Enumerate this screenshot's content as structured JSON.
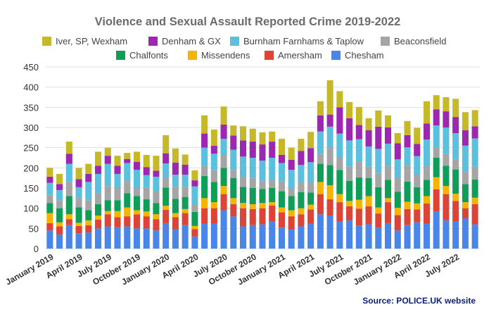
{
  "chart_data": {
    "type": "bar",
    "stacked": true,
    "title": "Violence and Sexual Assault Reported Crime 2019-2022",
    "source": "Source: POLICE.UK website",
    "xlabel": "",
    "ylabel": "",
    "ylim": [
      0,
      450
    ],
    "yticks": [
      0,
      50,
      100,
      150,
      200,
      250,
      300,
      350,
      400,
      450
    ],
    "grid": true,
    "legend_position": "top",
    "categories": [
      "Jan 2019",
      "Feb 2019",
      "Mar 2019",
      "Apr 2019",
      "May 2019",
      "Jun 2019",
      "Jul 2019",
      "Aug 2019",
      "Sep 2019",
      "Oct 2019",
      "Nov 2019",
      "Dec 2019",
      "Jan 2020",
      "Feb 2020",
      "Mar 2020",
      "Apr 2020",
      "May 2020",
      "Jun 2020",
      "Jul 2020",
      "Aug 2020",
      "Sep 2020",
      "Oct 2020",
      "Nov 2020",
      "Dec 2020",
      "Jan 2021",
      "Feb 2021",
      "Mar 2021",
      "Apr 2021",
      "May 2021",
      "Jun 2021",
      "Jul 2021",
      "Aug 2021",
      "Sep 2021",
      "Oct 2021",
      "Nov 2021",
      "Dec 2021",
      "Jan 2022",
      "Feb 2022",
      "Mar 2022",
      "Apr 2022",
      "May 2022",
      "Jun 2022",
      "Jul 2022",
      "Aug 2022",
      "Sep 2022"
    ],
    "xtick_labels": [
      {
        "index": 0,
        "label": "January 2019"
      },
      {
        "index": 3,
        "label": "April 2019"
      },
      {
        "index": 6,
        "label": "July 2019"
      },
      {
        "index": 9,
        "label": "October 2019"
      },
      {
        "index": 12,
        "label": "January 2020"
      },
      {
        "index": 15,
        "label": "April 2020"
      },
      {
        "index": 18,
        "label": "July 2020"
      },
      {
        "index": 21,
        "label": "October 2020"
      },
      {
        "index": 24,
        "label": "January 2021"
      },
      {
        "index": 27,
        "label": "April 2021"
      },
      {
        "index": 30,
        "label": "July 2021"
      },
      {
        "index": 33,
        "label": "October 2021"
      },
      {
        "index": 36,
        "label": "January 2022"
      },
      {
        "index": 39,
        "label": "April 2022"
      },
      {
        "index": 42,
        "label": "July 2022"
      }
    ],
    "series": [
      {
        "name": "Chesham",
        "color": "#4a86e8",
        "values": [
          45,
          35,
          58,
          38,
          40,
          50,
          55,
          53,
          55,
          50,
          50,
          45,
          63,
          48,
          58,
          30,
          62,
          62,
          95,
          80,
          55,
          58,
          60,
          67,
          52,
          48,
          55,
          62,
          85,
          82,
          68,
          70,
          57,
          60,
          52,
          63,
          45,
          58,
          65,
          62,
          92,
          70,
          68,
          75,
          60
        ]
      },
      {
        "name": "Amersham",
        "color": "#dc4437",
        "values": [
          18,
          20,
          15,
          18,
          18,
          22,
          30,
          25,
          25,
          35,
          30,
          28,
          33,
          30,
          30,
          18,
          38,
          38,
          40,
          30,
          45,
          40,
          40,
          40,
          38,
          32,
          30,
          35,
          50,
          40,
          47,
          35,
          42,
          45,
          35,
          52,
          38,
          40,
          32,
          50,
          55,
          65,
          50,
          25,
          50
        ]
      },
      {
        "name": "Missendens",
        "color": "#f4b400",
        "values": [
          25,
          10,
          12,
          8,
          12,
          10,
          8,
          15,
          22,
          10,
          12,
          12,
          10,
          10,
          10,
          8,
          25,
          15,
          20,
          15,
          13,
          12,
          13,
          8,
          12,
          15,
          15,
          12,
          30,
          35,
          20,
          13,
          22,
          25,
          15,
          10,
          18,
          18,
          15,
          18,
          30,
          20,
          18,
          15,
          16
        ]
      },
      {
        "name": "Chalfonts",
        "color": "#0f9d58",
        "values": [
          25,
          35,
          45,
          38,
          25,
          28,
          27,
          27,
          35,
          35,
          30,
          28,
          45,
          35,
          30,
          35,
          55,
          50,
          45,
          50,
          40,
          40,
          35,
          35,
          40,
          35,
          40,
          30,
          45,
          50,
          60,
          50,
          55,
          45,
          50,
          45,
          40,
          50,
          40,
          40,
          48,
          50,
          60,
          45,
          45
        ]
      },
      {
        "name": "Beaconsfield",
        "color": "#a5a5a5",
        "values": [
          20,
          20,
          35,
          25,
          25,
          28,
          35,
          30,
          30,
          20,
          30,
          30,
          25,
          30,
          25,
          18,
          25,
          30,
          32,
          20,
          25,
          25,
          20,
          20,
          25,
          20,
          25,
          25,
          25,
          45,
          30,
          35,
          40,
          28,
          35,
          35,
          35,
          40,
          32,
          35,
          25,
          30,
          25,
          30,
          32
        ]
      },
      {
        "name": "Burnham Farnhams & Taplow",
        "color": "#5bc0de",
        "values": [
          30,
          25,
          45,
          25,
          45,
          47,
          55,
          35,
          45,
          45,
          30,
          35,
          35,
          30,
          30,
          45,
          45,
          40,
          40,
          50,
          50,
          50,
          50,
          55,
          45,
          45,
          42,
          50,
          55,
          50,
          60,
          65,
          55,
          50,
          60,
          55,
          45,
          45,
          45,
          65,
          55,
          65,
          65,
          65,
          70
        ]
      },
      {
        "name": "Denham & GX",
        "color": "#9c27b0",
        "values": [
          15,
          15,
          25,
          20,
          20,
          20,
          20,
          20,
          10,
          20,
          20,
          15,
          25,
          30,
          25,
          15,
          35,
          20,
          35,
          35,
          40,
          40,
          40,
          40,
          20,
          25,
          35,
          35,
          40,
          30,
          65,
          55,
          35,
          40,
          55,
          40,
          40,
          30,
          30,
          40,
          40,
          40,
          40,
          38,
          30
        ]
      },
      {
        "name": "Iver, SP, Wexham",
        "color": "#c5b927",
        "values": [
          22,
          25,
          30,
          28,
          25,
          35,
          20,
          25,
          15,
          25,
          30,
          37,
          45,
          35,
          25,
          25,
          45,
          40,
          45,
          25,
          35,
          32,
          30,
          25,
          40,
          30,
          30,
          40,
          35,
          85,
          40,
          40,
          45,
          30,
          40,
          30,
          25,
          35,
          40,
          55,
          35,
          35,
          45,
          45,
          40
        ]
      }
    ],
    "legend_rows": [
      [
        "Iver, SP, Wexham",
        "Denham & GX",
        "Burnham Farnhams & Taplow",
        "Beaconsfield"
      ],
      [
        "Chalfonts",
        "Missendens",
        "Amersham",
        "Chesham"
      ]
    ]
  }
}
